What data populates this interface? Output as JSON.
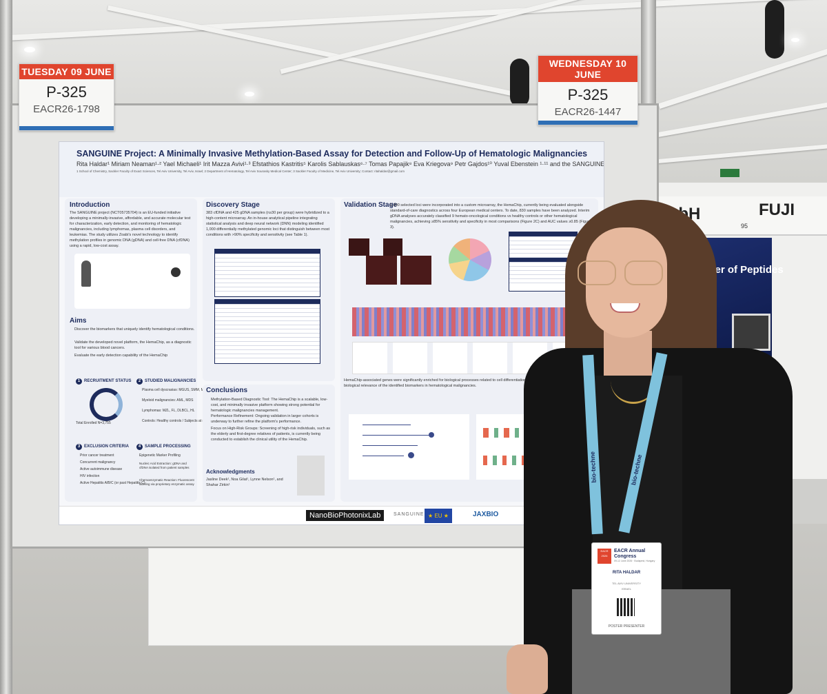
{
  "date_cards": [
    {
      "day": "TUESDAY 09 JUNE",
      "poster_number": "P-325",
      "code": "EACR26-1798"
    },
    {
      "day": "WEDNESDAY 10 JUNE",
      "poster_number": "P-325",
      "code": "EACR26-1447"
    }
  ],
  "poster": {
    "title": "SANGUINE Project: A Minimally Invasive Methylation-Based Assay for Detection and Follow-Up of Hematologic Malignancies",
    "authors": "Rita Haldar¹  Miriam Neaman¹·²  Yael Michaeli¹  Irit Mazza Avivi¹·³  Efstathios Kastritis⁵  Karolis Sablauskas⁶·⁷  Tomas Papajik⁸  Eva Kriegova⁹  Petr Gajdos¹⁰  Yuval Ebenstein ¹·¹¹  and the SANGUINE consortium",
    "affiliations": "1 School of Chemistry, Sackler Faculty of Exact Sciences, Tel Aviv University, Tel Aviv, Israel; 2 Department of Hematology, Tel Aviv Sourasky Medical Center; 3 Sackler Faculty of Medicine, Tel Aviv University; Contact: ritahaldar@gmail.com",
    "sections": {
      "introduction_title": "Introduction",
      "introduction_text": "The SANGUINE project (NCT05735704) is an EU-funded initiative developing a minimally-invasive, affordable, and accurate molecular test for characterization, early detection, and monitoring of hematologic malignancies, including lymphomas, plasma cell disorders, and leukemias. The study utilizes Zoabi's novel technology to identify methylation profiles in genomic DNA (gDNA) and cell-free DNA (cfDNA) using a rapid, low-cost assay.",
      "aims_title": "Aims",
      "aims": [
        "Discover the biomarkers that uniquely identify hematological conditions.",
        "Validate the developed novel platform, the HemaChip, as a diagnostic tool for various blood cancers.",
        "Evaluate the early detection capability of the HemaChip"
      ],
      "discovery_title": "Discovery Stage",
      "discovery_text": "383 cfDNA and 425 gDNA samples (n≥30 per group) were hybridized to a high-content microarray. An in-house analytical pipeline integrating statistical analysis and deep neural network (DNN) modeling identified 1,000 differentially methylated genomic loci that distinguish between most conditions with >90% specificity and sensitivity (see Table 1).",
      "validation_title": "Validation Stage",
      "validation_text": "1,000 selected loci were incorporated into a custom microarray, the HemaChip, currently being evaluated alongside standard-of-care diagnostics across four European medical centers. To date, 830 samples have been analyzed. Interim gDNA analyses accurately classified 9 hemato-oncological conditions vs healthy controls or other hematological malignancies, achieving ≥85% sensitivity and specificity in most comparisons (Figure 2C) and AUC values ≥0.85 (Figure 3).",
      "validation_text2": "HemaChip-associated genes were significantly enriched for biological processes related to cell differentiation, regulation, and signaling, supporting the biological relevance of the identified biomarkers in hematological malignancies.",
      "conclusions_title": "Conclusions",
      "conclusions": [
        "Methylation-Based Diagnostic Tool: The HemaChip is a scalable, low-cost, and minimally invasive platform showing strong potential for hematologic malignancies management.",
        "Performance Refinement: Ongoing validation in larger cohorts is underway to further refine the platform's performance.",
        "Focus on High-Risk Groups: Screening of high-risk individuals, such as the elderly and first-degree relatives of patients, is currently being conducted to establish the clinical utility of the HemaChip."
      ],
      "acknowledgments_title": "Acknowledgments",
      "acknowledgments_text": "Jasline Deek¹, Noa Gilat¹, Lynne Nelson¹, and Shahar Zirkin¹",
      "recruitment_title": "RECRUITMENT STATUS",
      "recruitment_total": "Total Enrolled N=3,755",
      "studied_title": "STUDIED MALIGNANCIES",
      "studied_items": [
        "Plasma cell dyscrasias: MGUS, SMM, MM",
        "Myeloid malignancies: AML, MDS",
        "Lymphomas: MZL, FL, DLBCL, HL",
        "Controls: Healthy controls / Subjects at risk"
      ],
      "exclusion_title": "EXCLUSION CRITERIA",
      "exclusion_items": [
        "Prior cancer treatment",
        "Concurrent malignancy",
        "Active autoimmune disease",
        "HIV infection",
        "Active Hepatitis A/B/C (or past Hepatitis C)"
      ],
      "sample_title": "SAMPLE PROCESSING",
      "sample_items": [
        "Epigenetic Marker Profiling",
        "Nucleic Acid Extraction: gDNA and cfDNA isolated from patient samples",
        "Chemoenzymatic Reaction: Fluorescent labeling via proprietary enzymatic assay"
      ]
    },
    "logos": {
      "nanobio": "NanoBioPhotonixLab",
      "sanguine": "SANGUINE",
      "jaxbio": "JAXBIO",
      "eu": "★ EU ★"
    },
    "colors": {
      "title": "#1d2b5c",
      "accent_red": "#e0452e",
      "stripe_blue": "#2f6fb5"
    }
  },
  "booth": {
    "sign_left": "mbH",
    "sign_right": "FUJI",
    "booth_number": "95",
    "panel_text": "the Power of Peptides"
  },
  "person": {
    "lanyard_text": "bio-techne",
    "badge": {
      "brand": "EACR Annual Congress",
      "sub": "09-12 June 2026 · Budapest, Hungary",
      "name": "RITA HALDAR",
      "affiliation": "TEL AVIV UNIVERSITY",
      "country": "ISRAEL",
      "role": "POSTER PRESENTER",
      "logo": "EACR 2026"
    }
  }
}
